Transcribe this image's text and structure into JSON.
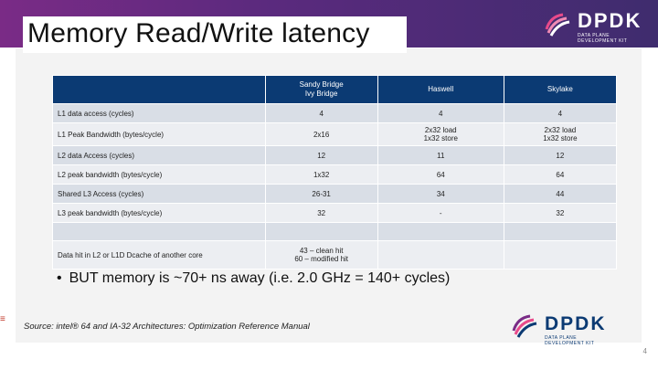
{
  "slide": {
    "title": "Memory Read/Write latency",
    "page_number": "4"
  },
  "logos": {
    "top": {
      "word": "DPDK",
      "sub": "DATA PLANE DEVELOPMENT KIT"
    },
    "bottom": {
      "word": "DPDK",
      "sub": "DATA PLANE DEVELOPMENT KIT"
    }
  },
  "table": {
    "headers": [
      "",
      "Sandy Bridge\nIvy Bridge",
      "Haswell",
      "Skylake"
    ],
    "rows": [
      [
        "L1 data access (cycles)",
        "4",
        "4",
        "4"
      ],
      [
        "L1 Peak Bandwidth (bytes/cycle)",
        "2x16",
        "2x32 load\n1x32 store",
        "2x32 load\n1x32 store"
      ],
      [
        "L2 data Access (cycles)",
        "12",
        "11",
        "12"
      ],
      [
        "L2 peak bandwidth (bytes/cycle)",
        "1x32",
        "64",
        "64"
      ],
      [
        "Shared L3 Access (cycles)",
        "26-31",
        "34",
        "44"
      ],
      [
        "L3 peak bandwidth (bytes/cycle)",
        "32",
        "-",
        "32"
      ],
      [
        "",
        "",
        "",
        ""
      ],
      [
        "Data hit in L2 or L1D Dcache of another core",
        "43 – clean hit\n60 – modified hit",
        "",
        ""
      ]
    ]
  },
  "bullet": "BUT memory is ~70+ ns away (i.e. 2.0 GHz = 140+ cycles)",
  "source": "Source: intel® 64 and IA-32 Architectures: Optimization Reference Manual",
  "colors": {
    "header_bg": "#0b3a73",
    "banner_purple": "#6a2b82",
    "row_dark": "#d9dee6",
    "row_light": "#eceef2"
  }
}
